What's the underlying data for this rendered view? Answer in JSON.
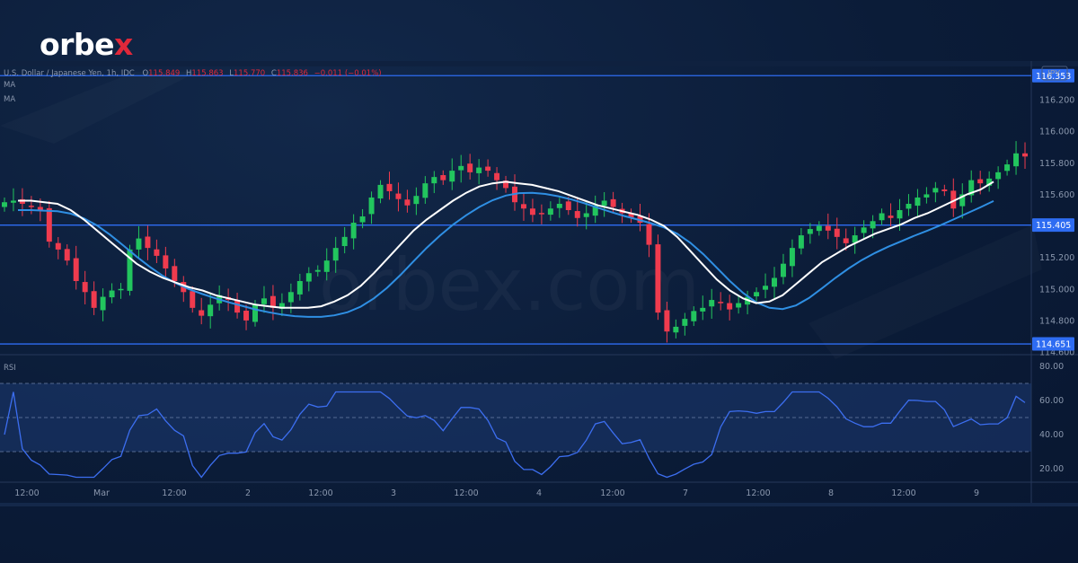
{
  "brand": {
    "logo_text": "orbe",
    "logo_x": "x",
    "watermark": "orbex.com"
  },
  "legend": {
    "symbol": "U.S. Dollar / Japanese Yen, 1h, IDC",
    "o_label": "O",
    "o": "115.849",
    "h_label": "H",
    "h": "115.863",
    "l_label": "L",
    "l": "115.770",
    "c_label": "C",
    "c": "115.836",
    "change": "−0.011 (−0.01%)",
    "ma1": "MA",
    "ma2": "MA",
    "rsi": "RSI",
    "currency": "JPY"
  },
  "colors": {
    "up": "#22c55e",
    "down": "#ef3b4e",
    "fast_ma": "#ffffff",
    "slow_ma": "#2f8fe3",
    "level": "#2e6cf2",
    "rsi_line": "#3c6ef0",
    "rsi_band": "#1e3a73"
  },
  "chart_data": {
    "type": "candlestick",
    "price_axis": {
      "min": 114.6,
      "max": 116.4,
      "ticks": [
        "116.200",
        "116.000",
        "115.800",
        "115.600",
        "115.400",
        "115.200",
        "115.000",
        "114.800",
        "114.600"
      ]
    },
    "time_axis": {
      "labels": [
        "12:00",
        "Mar",
        "12:00",
        "2",
        "12:00",
        "3",
        "12:00",
        "4",
        "12:00",
        "7",
        "12:00",
        "8",
        "12:00",
        "9"
      ]
    },
    "levels": [
      {
        "value": 116.353,
        "label": "116.353"
      },
      {
        "value": 115.405,
        "label": "115.405"
      },
      {
        "value": 114.651,
        "label": "114.651"
      }
    ],
    "close": [
      115.55,
      115.56,
      115.54,
      115.52,
      115.5,
      115.3,
      115.25,
      115.18,
      115.05,
      114.98,
      114.88,
      114.95,
      114.99,
      115.0,
      115.25,
      115.32,
      115.26,
      115.21,
      115.13,
      115.05,
      114.98,
      114.88,
      114.83,
      114.9,
      114.96,
      114.93,
      114.85,
      114.8,
      114.9,
      114.94,
      114.88,
      114.91,
      114.98,
      115.05,
      115.1,
      115.12,
      115.18,
      115.26,
      115.33,
      115.42,
      115.46,
      115.58,
      115.66,
      115.62,
      115.57,
      115.53,
      115.59,
      115.67,
      115.71,
      115.69,
      115.75,
      115.78,
      115.74,
      115.77,
      115.75,
      115.69,
      115.64,
      115.55,
      115.51,
      115.47,
      115.48,
      115.51,
      115.54,
      115.5,
      115.45,
      115.48,
      115.53,
      115.56,
      115.52,
      115.48,
      115.45,
      115.42,
      115.28,
      114.85,
      114.73,
      114.76,
      114.81,
      114.86,
      114.88,
      114.93,
      114.91,
      114.87,
      114.91,
      114.95,
      114.98,
      115.02,
      115.07,
      115.16,
      115.26,
      115.34,
      115.38,
      115.4,
      115.37,
      115.33,
      115.29,
      115.34,
      115.39,
      115.43,
      115.48,
      115.45,
      115.5,
      115.54,
      115.58,
      115.6,
      115.64,
      115.62,
      115.51,
      115.6,
      115.69,
      115.67,
      115.7,
      115.74,
      115.79,
      115.86,
      115.84
    ],
    "fast_ma": [
      115.56,
      115.56,
      115.55,
      115.54,
      115.5,
      115.44,
      115.37,
      115.3,
      115.23,
      115.16,
      115.11,
      115.07,
      115.04,
      115.01,
      114.99,
      114.96,
      114.94,
      114.92,
      114.9,
      114.89,
      114.88,
      114.88,
      114.88,
      114.89,
      114.92,
      114.96,
      115.02,
      115.1,
      115.19,
      115.28,
      115.37,
      115.44,
      115.5,
      115.56,
      115.61,
      115.65,
      115.67,
      115.68,
      115.67,
      115.66,
      115.64,
      115.62,
      115.59,
      115.56,
      115.53,
      115.51,
      115.49,
      115.47,
      115.44,
      115.4,
      115.33,
      115.24,
      115.15,
      115.06,
      114.99,
      114.94,
      114.91,
      114.92,
      114.96,
      115.03,
      115.1,
      115.17,
      115.22,
      115.27,
      115.31,
      115.35,
      115.38,
      115.41,
      115.45,
      115.48,
      115.52,
      115.56,
      115.6,
      115.63,
      115.68
    ]
  }
}
